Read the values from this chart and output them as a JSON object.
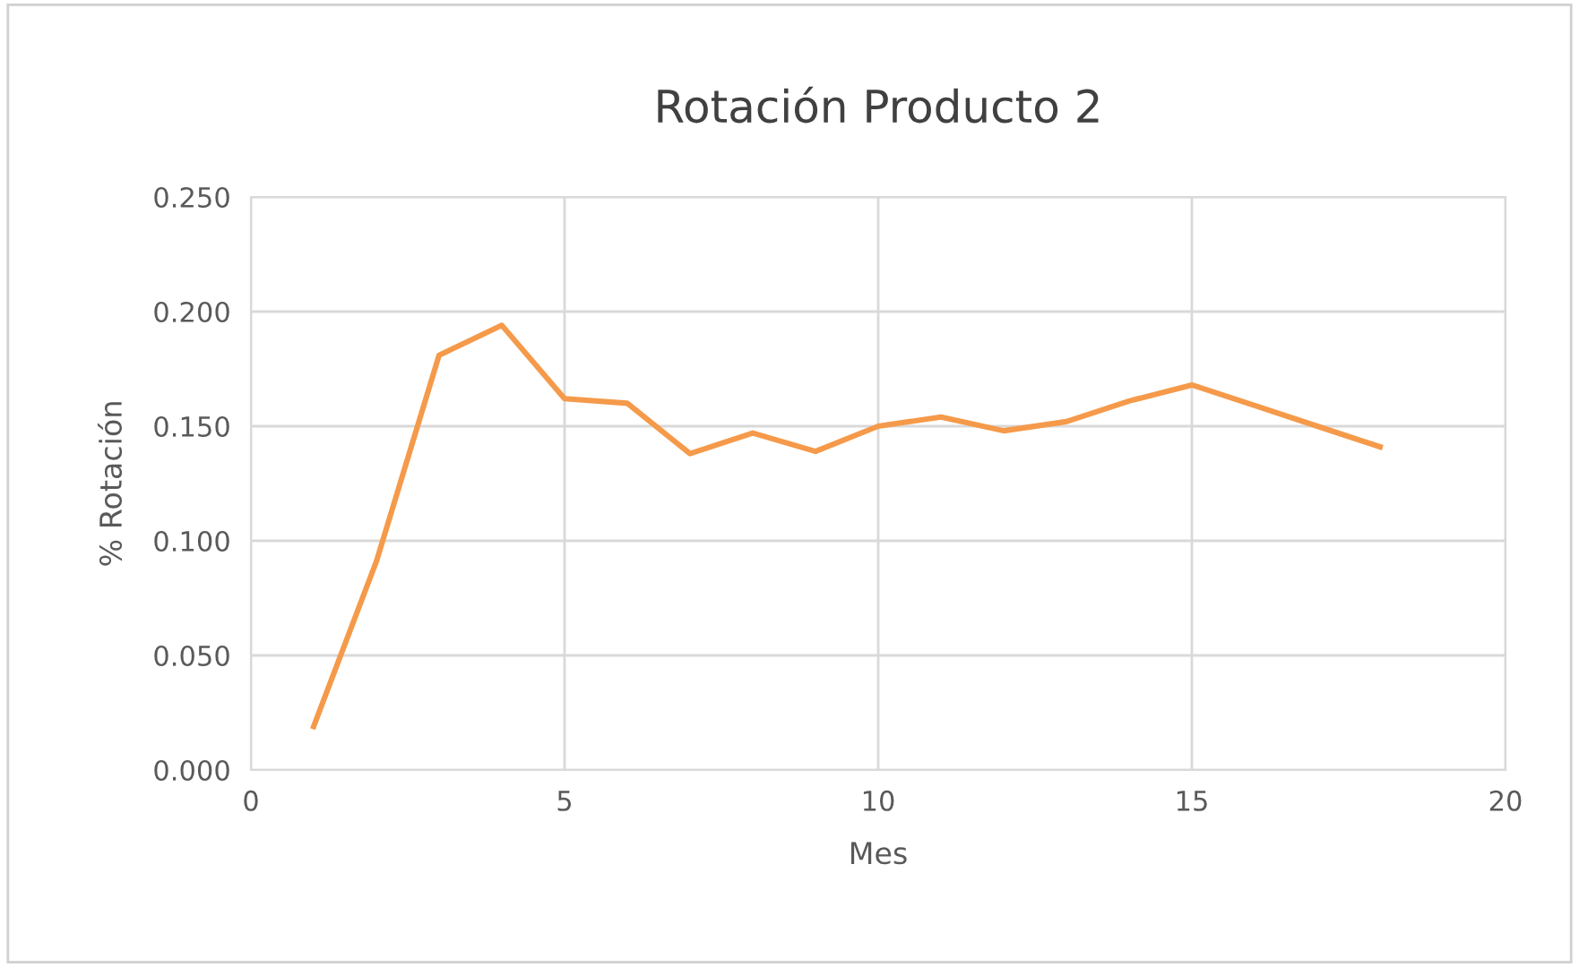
{
  "chart_data": {
    "type": "line",
    "title": "Rotación Producto 2",
    "xlabel": "Mes",
    "ylabel": "% Rotación",
    "x": [
      1,
      2,
      3,
      4,
      5,
      6,
      7,
      8,
      9,
      10,
      11,
      12,
      13,
      14,
      15,
      16,
      17,
      18
    ],
    "series": [
      {
        "color": "#f59a4a",
        "values": [
          0.019,
          0.091,
          0.181,
          0.194,
          0.162,
          0.16,
          0.138,
          0.147,
          0.139,
          0.15,
          0.154,
          0.148,
          0.152,
          0.161,
          0.168,
          0.159,
          0.15,
          0.141
        ]
      }
    ],
    "xlim": [
      0,
      20
    ],
    "xticks": [
      0,
      5,
      10,
      15,
      20
    ],
    "ylim": [
      0,
      0.25
    ],
    "yticks": [
      {
        "value": 0,
        "label": "0.000"
      },
      {
        "value": 0.05,
        "label": "0.050"
      },
      {
        "value": 0.1,
        "label": "0.100"
      },
      {
        "value": 0.15,
        "label": "0.150"
      },
      {
        "value": 0.2,
        "label": "0.200"
      },
      {
        "value": 0.25,
        "label": "0.250"
      }
    ],
    "grid": true,
    "marker": "none",
    "line_style": "solid"
  }
}
